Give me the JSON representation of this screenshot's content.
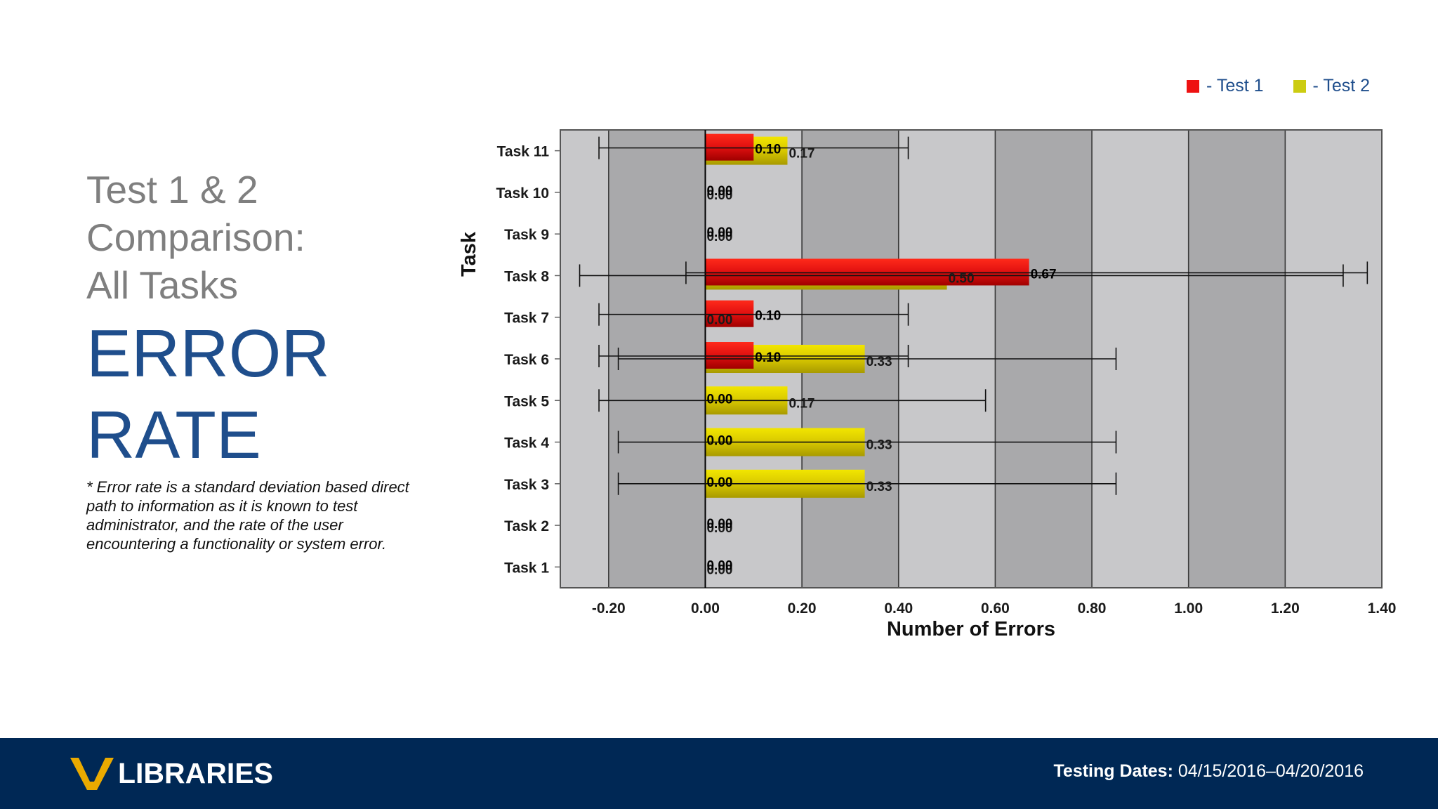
{
  "slide": {
    "subtitle_lines": [
      "Test 1 & 2",
      "Comparison:",
      "All Tasks"
    ],
    "headline_lines": [
      "ERROR",
      "RATE"
    ],
    "footnote": "* Error rate is a standard deviation based direct path to information as it is known to test administrator, and the rate of the user encountering a functionality or system error."
  },
  "legend": {
    "items": [
      {
        "label": "- Test 1",
        "color": "#ee1111"
      },
      {
        "label": "- Test 2",
        "color": "#cccc11"
      }
    ]
  },
  "footer": {
    "logo_text": "LIBRARIES",
    "testing_label": "Testing Dates:",
    "testing_value": " 04/15/2016–04/20/2016"
  },
  "chart_data": {
    "type": "bar",
    "orientation": "horizontal",
    "xlabel": "Number of Errors",
    "ylabel": "Task",
    "xlim": [
      -0.3,
      1.4
    ],
    "xticks": [
      -0.2,
      0.0,
      0.2,
      0.4,
      0.6,
      0.8,
      1.0,
      1.2,
      1.4
    ],
    "xtick_labels": [
      "-0.20",
      "0.00",
      "0.20",
      "0.40",
      "0.60",
      "0.80",
      "1.00",
      "1.20",
      "1.40"
    ],
    "categories": [
      "Task 11",
      "Task 10",
      "Task 9",
      "Task 8",
      "Task 7",
      "Task 6",
      "Task 5",
      "Task 4",
      "Task 3",
      "Task 2",
      "Task 1"
    ],
    "grid": "alternating vertical bands",
    "series": [
      {
        "name": "Test 1",
        "color": "#dd1111",
        "values": [
          0.1,
          0.0,
          0.0,
          0.67,
          0.1,
          0.1,
          0.0,
          0.0,
          0.0,
          0.0,
          0.0
        ],
        "labels": [
          "0.10",
          "0.00",
          "0.00",
          "0.67",
          "0.10",
          "0.10",
          "0.00",
          "0.00",
          "0.00",
          "0.00",
          "0.00"
        ],
        "error_low": [
          -0.22,
          null,
          null,
          -0.04,
          -0.22,
          -0.22,
          null,
          null,
          null,
          null,
          null
        ],
        "error_high": [
          0.42,
          null,
          null,
          1.37,
          0.42,
          0.42,
          null,
          null,
          null,
          null,
          null
        ]
      },
      {
        "name": "Test 2",
        "color": "#d4c300",
        "values": [
          0.17,
          0.0,
          0.0,
          0.5,
          0.0,
          0.33,
          0.17,
          0.33,
          0.33,
          0.0,
          0.0
        ],
        "labels": [
          "0.17",
          "0.00",
          "0.00",
          "0.50",
          "0.00",
          "0.33",
          "0.17",
          "0.33",
          "0.33",
          "0.00",
          "0.00"
        ],
        "error_low": [
          null,
          null,
          null,
          -0.26,
          null,
          -0.18,
          -0.22,
          -0.18,
          -0.18,
          null,
          null
        ],
        "error_high": [
          0.58,
          null,
          null,
          1.32,
          null,
          0.85,
          0.58,
          0.85,
          0.85,
          null,
          null
        ]
      }
    ]
  }
}
